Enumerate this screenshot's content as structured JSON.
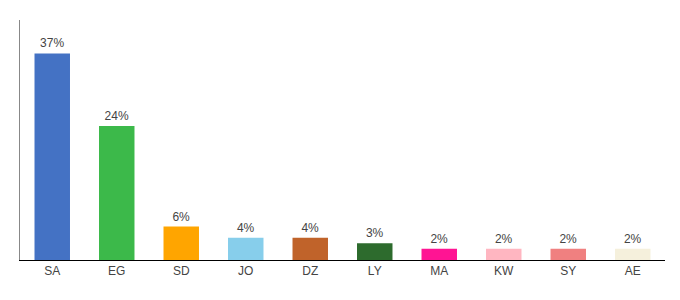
{
  "chart_data": {
    "type": "bar",
    "categories": [
      "SA",
      "EG",
      "SD",
      "JO",
      "DZ",
      "LY",
      "MA",
      "KW",
      "SY",
      "AE"
    ],
    "values": [
      37,
      24,
      6,
      4,
      4,
      3,
      2,
      2,
      2,
      2
    ],
    "value_labels": [
      "37%",
      "24%",
      "6%",
      "4%",
      "4%",
      "3%",
      "2%",
      "2%",
      "2%",
      "2%"
    ],
    "colors": [
      "#4472C4",
      "#3CB94A",
      "#FFA500",
      "#87CEEB",
      "#C0632A",
      "#2D6B2D",
      "#FF1493",
      "#FFB6C1",
      "#F08080",
      "#F5F0DC"
    ],
    "ylim": [
      0,
      43
    ],
    "grid": false,
    "data_labels": true,
    "tick_labels": "x"
  }
}
